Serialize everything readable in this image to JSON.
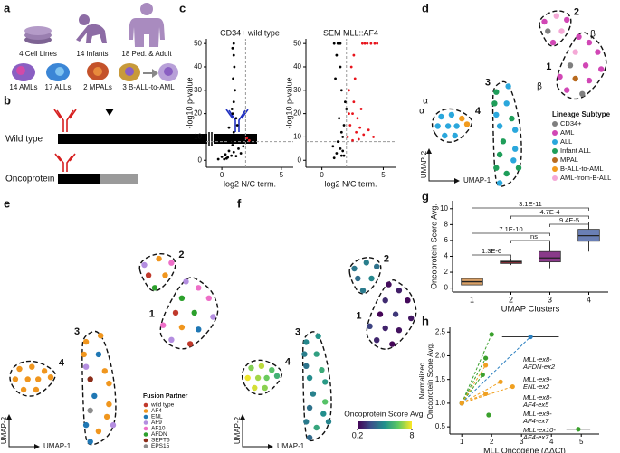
{
  "panel_labels": [
    "a",
    "b",
    "c",
    "d",
    "e",
    "f",
    "g",
    "h"
  ],
  "cohort": {
    "sources": [
      "4 Cell Lines",
      "14 Infants",
      "18 Ped. & Adult"
    ],
    "subtypes": [
      "14 AMLs",
      "17 ALLs",
      "2 MPALs",
      "3 B-ALL-to-AML"
    ]
  },
  "schematic": {
    "rows": [
      "Wild type",
      "Oncoprotein"
    ]
  },
  "umap_points": {
    "x": [
      5,
      11,
      17,
      3,
      9,
      14,
      20,
      7,
      13,
      37,
      44,
      36,
      43,
      37,
      46,
      39,
      48,
      41,
      48,
      39,
      47,
      37,
      43,
      39,
      50,
      65,
      72,
      78,
      67,
      75,
      70,
      85,
      91,
      83,
      96,
      80,
      89,
      98,
      74,
      83,
      91,
      78,
      87
    ],
    "y": [
      40,
      41,
      39,
      35,
      35,
      35,
      36,
      30,
      30,
      53,
      56,
      47,
      47,
      41,
      39,
      35,
      33,
      27,
      23,
      20,
      17,
      13,
      10,
      5,
      13,
      90,
      93,
      91,
      85,
      85,
      79,
      82,
      79,
      74,
      74,
      67,
      67,
      65,
      61,
      60,
      59,
      54,
      52
    ],
    "cluster": [
      "4",
      "4",
      "4",
      "4",
      "4",
      "4",
      "4",
      "4",
      "4",
      "3",
      "3",
      "3",
      "3",
      "3",
      "3",
      "3",
      "3",
      "3",
      "3",
      "3",
      "3",
      "3",
      "3",
      "3",
      "3",
      "2",
      "2",
      "2",
      "2",
      "2",
      "2",
      "1",
      "1",
      "1",
      "1",
      "1",
      "1",
      "1",
      "1",
      "1",
      "1",
      "1",
      "1"
    ],
    "lineage": [
      "ALL",
      "ALL",
      "B-ALL-to-AML",
      "ALL",
      "ALL",
      "ALL",
      "B-ALL-to-AML",
      "ALL",
      "ALL",
      "Infant ALL",
      "ALL",
      "Infant ALL",
      "ALL",
      "ALL",
      "Infant ALL",
      "ALL",
      "ALL",
      "Infant ALL",
      "ALL",
      "Infant ALL",
      "ALL",
      "Infant ALL",
      "Infant ALL",
      "ALL",
      "Infant ALL",
      "AML",
      "AML-from-B-ALL",
      "AML",
      "CD34+",
      "AML-from-B-ALL",
      "AML",
      "AML",
      "AML",
      "AML-from-B-ALL",
      "AML",
      "CD34+",
      "AML",
      "AML",
      "AML",
      "MPAL",
      "AML",
      "AML",
      "CD34+"
    ],
    "fusion": [
      "AF4",
      "AF4",
      "AF4",
      "AF4",
      "AF4",
      "AF4",
      "AF4",
      "AF4",
      "AF4",
      "AF4",
      "AF4",
      "AF4",
      "ENL",
      "AF9",
      "AF4",
      "SEPT6",
      "AF4",
      "ENL",
      "AF4",
      "EPS15",
      "AF4",
      "ENL",
      "AF4",
      "ENL",
      "AF9",
      "AF9",
      "AF4",
      "AF10",
      "wild type",
      "AF4",
      "AFDN",
      "AF9",
      "AF10",
      "AFDN",
      "AF10",
      "wild type",
      "AFDN",
      "AF9",
      "AF10",
      "AF4",
      "ENL",
      "AF9",
      "wild type"
    ],
    "score": [
      6.5,
      7.2,
      5.8,
      7.8,
      6.9,
      6.2,
      5.2,
      7.5,
      6.6,
      3.8,
      4.2,
      3.5,
      4.6,
      3.2,
      5.0,
      3.9,
      4.4,
      3.6,
      5.8,
      3.1,
      4.0,
      3.4,
      4.8,
      2.9,
      3.7,
      3.3,
      3.5,
      3.1,
      3.0,
      3.8,
      3.4,
      0.5,
      0.9,
      1.2,
      0.4,
      0.3,
      1.5,
      0.7,
      1.8,
      1.0,
      0.6,
      1.1,
      0.3
    ]
  },
  "chart_data": [
    {
      "type": "scatter",
      "title": "CD34+ wild type",
      "xlabel": "log2 N/C term.",
      "ylabel": "-log10 p-value",
      "xlim": [
        -1.3,
        6
      ],
      "ylim": [
        -3,
        52
      ],
      "xticks": [
        0,
        5
      ],
      "yticks": [
        0,
        10,
        20,
        30,
        40,
        50
      ],
      "hline": 8,
      "vline": 2,
      "series": [
        {
          "color": "#000000",
          "x": [
            0.2,
            0.5,
            0.8,
            1.0,
            1.2,
            0.6,
            0.9,
            1.1,
            1.4,
            0.3,
            0.7,
            1.0,
            1.3,
            1.6,
            0.9,
            1.0,
            1.1,
            0.95,
            1.05,
            1.0,
            0.9,
            1.2,
            1.5,
            1.8,
            0.4,
            0.0,
            -0.3,
            0.6,
            1.7,
            1.0,
            0.85
          ],
          "values": [
            0.5,
            1.2,
            2.0,
            3.5,
            1.8,
            4.0,
            6.5,
            9.0,
            5.0,
            2.5,
            8.0,
            12,
            15,
            3,
            20,
            25,
            30,
            35,
            40,
            50,
            48,
            18,
            10,
            6,
            0.8,
            1.5,
            0.5,
            14,
            9,
            45,
            22
          ]
        },
        {
          "color": "#e8141c",
          "x": [
            2.1,
            2.3
          ],
          "values": [
            9.5,
            8.5
          ]
        }
      ]
    },
    {
      "type": "scatter",
      "title": "SEM MLL::AF4",
      "xlabel": "log2 N/C term.",
      "ylabel": "-log10 p-value",
      "xlim": [
        -1.3,
        6
      ],
      "ylim": [
        -3,
        52
      ],
      "xticks": [
        0,
        5
      ],
      "yticks": [
        0,
        10,
        20,
        30,
        40,
        50
      ],
      "hline": 8,
      "vline": 2,
      "series": [
        {
          "color": "#000000",
          "x": [
            1.0,
            1.2,
            1.5,
            1.8,
            1.3,
            1.6,
            1.4,
            1.9,
            1.1,
            1.7,
            1.5,
            1.2,
            1.6,
            1.8,
            1.4,
            1.3,
            1.0,
            1.5,
            2.0,
            1.7,
            0.9,
            1.6
          ],
          "values": [
            1,
            3,
            5,
            2,
            8,
            12,
            18,
            25,
            35,
            4,
            40,
            45,
            30,
            15,
            50,
            50,
            50,
            50,
            22,
            10,
            6,
            2
          ]
        },
        {
          "color": "#e8141c",
          "x": [
            2.1,
            2.3,
            2.5,
            2.8,
            3.0,
            2.2,
            2.6,
            3.4,
            2.4,
            3.8,
            2.9,
            3.2,
            4.2,
            2.7,
            3.3,
            3.5,
            3.7,
            4.0,
            4.3,
            4.5,
            2.5,
            2.2,
            2.6,
            3.1
          ],
          "values": [
            10,
            15,
            20,
            12,
            9,
            30,
            25,
            11,
            40,
            13,
            18,
            22,
            10,
            35,
            50,
            50,
            50,
            50,
            50,
            50,
            8.5,
            20,
            45,
            14
          ]
        }
      ]
    },
    {
      "type": "umap",
      "color_by": "lineage",
      "xlabel": "UMAP-1",
      "ylabel": "UMAP-2",
      "clusters": [
        "1",
        "2",
        "3",
        "4"
      ],
      "annotations": [
        "α",
        "α",
        "β",
        "β"
      ],
      "legend_title": "Lineage Subtype",
      "legend": [
        {
          "name": "CD34+",
          "color": "#7f7f7f"
        },
        {
          "name": "AML",
          "color": "#d147b5"
        },
        {
          "name": "ALL",
          "color": "#2aa7dc"
        },
        {
          "name": "Infant ALL",
          "color": "#1f9e5a"
        },
        {
          "name": "MPAL",
          "color": "#b86a1e"
        },
        {
          "name": "B-ALL-to-AML",
          "color": "#f29b1d"
        },
        {
          "name": "AML-from-B-ALL",
          "color": "#f4a8d6"
        }
      ]
    },
    {
      "type": "umap",
      "color_by": "fusion",
      "xlabel": "UMAP-1",
      "ylabel": "UMAP-2",
      "clusters": [
        "1",
        "2",
        "3",
        "4"
      ],
      "legend_title": "Fusion Partner",
      "legend": [
        {
          "name": "wild type",
          "color": "#c0392b"
        },
        {
          "name": "AF4",
          "color": "#f0961e"
        },
        {
          "name": "ENL",
          "color": "#1f77b4"
        },
        {
          "name": "AF9",
          "color": "#b48ee0"
        },
        {
          "name": "AF10",
          "color": "#ee6fc8"
        },
        {
          "name": "AFDN",
          "color": "#2ca02c"
        },
        {
          "name": "SEPT6",
          "color": "#8c2d19"
        },
        {
          "name": "EPS15",
          "color": "#8c8c8c"
        }
      ]
    },
    {
      "type": "umap",
      "color_by": "score",
      "xlabel": "UMAP-1",
      "ylabel": "UMAP-2",
      "clusters": [
        "1",
        "2",
        "3",
        "4"
      ],
      "colorbar_title": "Oncoprotein Score Avg.",
      "clim": [
        0.2,
        8
      ],
      "cticks": [
        0.2,
        8
      ],
      "cmap": [
        "#440154",
        "#3b528b",
        "#21918c",
        "#5ec962",
        "#fde725"
      ]
    },
    {
      "type": "box",
      "xlabel": "UMAP Clusters",
      "ylabel": "Oncoprotein Score Avg.",
      "categories": [
        "1",
        "2",
        "3",
        "4"
      ],
      "ylim": [
        -0.5,
        11
      ],
      "yticks": [
        0,
        2,
        4,
        6,
        8,
        10
      ],
      "min": [
        0.2,
        2.9,
        2.5,
        4.6
      ],
      "q1": [
        0.4,
        3.1,
        3.3,
        5.9
      ],
      "median": [
        0.8,
        3.3,
        3.8,
        6.6
      ],
      "q3": [
        1.2,
        3.4,
        4.6,
        7.4
      ],
      "max": [
        1.9,
        3.8,
        5.8,
        8.3
      ],
      "colors": [
        "#d9a066",
        "#a0303a",
        "#8a3a8a",
        "#6a7fb5"
      ],
      "brackets": [
        {
          "pair": [
            "1",
            "2"
          ],
          "label": "1.3E-6"
        },
        {
          "pair": [
            "1",
            "3"
          ],
          "label": "7.1E-10"
        },
        {
          "pair": [
            "2",
            "3"
          ],
          "label": "ns"
        },
        {
          "pair": [
            "1",
            "4"
          ],
          "label": "3.1E-11"
        },
        {
          "pair": [
            "2",
            "4"
          ],
          "label": "4.7E-4"
        },
        {
          "pair": [
            "3",
            "4"
          ],
          "label": "9.4E-5"
        }
      ]
    },
    {
      "type": "scatter",
      "xlabel": "MLL Oncogene (ΔΔCt)",
      "ylabel": [
        "Normalized",
        "Oncoprotein Score Avg."
      ],
      "xlim": [
        0.6,
        5.6
      ],
      "ylim": [
        0.35,
        2.6
      ],
      "xticks": [
        1,
        2,
        3,
        4,
        5
      ],
      "yticks": [
        0.5,
        {
          "value": 1,
          "label": "1.0"
        },
        1.5,
        {
          "value": 2,
          "label": "2.0"
        },
        2.5
      ],
      "connect": true,
      "series": [
        {
          "color": "#3aa02c",
          "x": [
            1,
            2.0,
            1.8,
            1.7,
            1.9,
            4.9
          ],
          "values": [
            1,
            2.45,
            1.95,
            1.6,
            0.75,
            0.45
          ],
          "xerr": [
            null,
            null,
            null,
            null,
            null,
            0.4
          ]
        },
        {
          "color": "#2a7fc0",
          "x": [
            1,
            3.3
          ],
          "values": [
            1,
            2.4
          ],
          "xerr": [
            null,
            0.95
          ]
        },
        {
          "color": "#f0a020",
          "x": [
            1,
            1.8,
            2.3,
            1.8,
            2.7
          ],
          "values": [
            1,
            1.8,
            1.45,
            1.2,
            1.35
          ]
        }
      ],
      "annotations": [
        {
          "lines": [
            "MLL-ex8-",
            "AFDN-ex2"
          ],
          "color": "#3aa02c"
        },
        {
          "lines": [
            "MLL-ex9-",
            "ENL-ex2"
          ],
          "color": "#2a7fc0"
        },
        {
          "lines": [
            "MLL-ex8-",
            "AF4-ex5"
          ],
          "color": "#f0a020"
        },
        {
          "lines": [
            "MLL-ex9-",
            "AF4-ex7"
          ],
          "color": "#f0a020"
        },
        {
          "lines": [
            "MLL-ex10-",
            "AF4-ex7"
          ],
          "color": "#f0a020"
        }
      ]
    }
  ]
}
